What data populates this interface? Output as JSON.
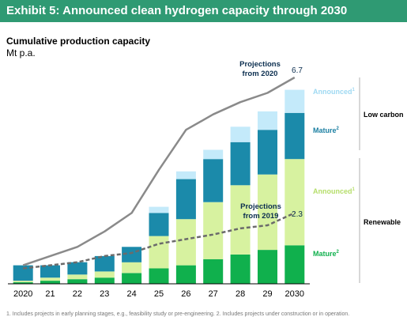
{
  "header": {
    "title": "Exhibit 5: Announced clean hydrogen capacity through 2030"
  },
  "chart_data": {
    "type": "bar",
    "stacked": true,
    "title": "Cumulative production capacity",
    "unit": "Mt p.a.",
    "categories": [
      "2020",
      "21",
      "22",
      "23",
      "24",
      "25",
      "26",
      "27",
      "28",
      "29",
      "2030"
    ],
    "series": [
      {
        "name": "Mature",
        "group": "Renewable",
        "color": "#10b04d",
        "values": [
          0.05,
          0.1,
          0.15,
          0.2,
          0.35,
          0.5,
          0.6,
          0.8,
          0.95,
          1.1,
          1.25
        ]
      },
      {
        "name": "Announced",
        "group": "Renewable",
        "color": "#d7f2a0",
        "values": [
          0.05,
          0.1,
          0.15,
          0.2,
          0.35,
          1.05,
          1.5,
          1.85,
          2.25,
          2.45,
          2.8
        ]
      },
      {
        "name": "Mature",
        "group": "Low carbon",
        "color": "#1b8aaa",
        "values": [
          0.5,
          0.4,
          0.4,
          0.5,
          0.5,
          0.75,
          1.3,
          1.4,
          1.4,
          1.45,
          1.5
        ]
      },
      {
        "name": "Announced",
        "group": "Low carbon",
        "color": "#c4eafa",
        "values": [
          0,
          0,
          0,
          0,
          0,
          0.2,
          0.25,
          0.3,
          0.5,
          0.6,
          0.75
        ]
      }
    ],
    "lines": [
      {
        "name": "Projections from 2020",
        "style": "solid",
        "color": "#8a8a8a",
        "values": [
          0.6,
          0.9,
          1.2,
          1.7,
          2.3,
          3.7,
          5.0,
          5.5,
          5.9,
          6.2,
          6.7
        ],
        "end_label": "6.7"
      },
      {
        "name": "Projections from 2019",
        "style": "dashed",
        "color": "#6b6b6b",
        "values": [
          0.5,
          0.6,
          0.7,
          0.9,
          1.0,
          1.3,
          1.45,
          1.6,
          1.8,
          1.9,
          2.3
        ],
        "end_label": "2.3"
      }
    ],
    "labels": {
      "announced": "Announced",
      "announced_sup": "1",
      "mature": "Mature",
      "mature_sup": "2",
      "low_carbon": "Low carbon",
      "renewable": "Renewable",
      "proj2020_line1": "Projections",
      "proj2020_line2": "from 2020",
      "proj2019_line1": "Projections",
      "proj2019_line2": "from 2019",
      "end_2020": "6.7",
      "end_2019": "2.3"
    },
    "ylim": [
      0,
      7.0
    ],
    "grid": false,
    "legend": "right"
  },
  "footnote": "1. Includes projects in early planning stages, e.g., feasibility study or pre-engineering. 2. Includes projects under construction or in operation."
}
